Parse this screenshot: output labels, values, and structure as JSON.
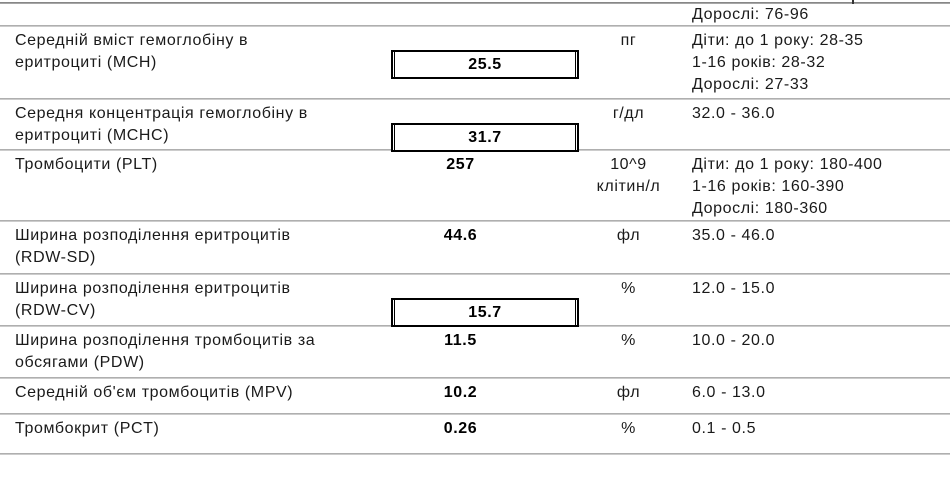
{
  "document_type": "lab-results-table",
  "rows": [
    {
      "name": "",
      "value": "",
      "unit": "",
      "reference": "Дорослі: 76-96"
    },
    {
      "name": "Середній вміст гемоглобіну в\nеритроциті (MCH)",
      "value": "25.5",
      "unit": "пг",
      "reference": "Діти: до 1 року: 28-35\n1-16 років: 28-32\nДорослі: 27-33"
    },
    {
      "name": "Середня концентрація гемоглобіну в\nеритроциті (MCHC)",
      "value": "31.7",
      "unit": "г/дл",
      "reference": "32.0 - 36.0"
    },
    {
      "name": "Тромбоцити (PLT)",
      "value": "257",
      "unit": "10^9\nклітин/л",
      "reference": "Діти: до 1 року: 180-400\n1-16 років: 160-390\nДорослі: 180-360"
    },
    {
      "name": "Ширина розподілення еритроцитів\n(RDW-SD)",
      "value": "44.6",
      "unit": "фл",
      "reference": "35.0 - 46.0"
    },
    {
      "name": "Ширина розподілення еритроцитів\n(RDW-CV)",
      "value": "15.7",
      "unit": "%",
      "reference": "12.0 - 15.0"
    },
    {
      "name": "Ширина розподілення тромбоцитів за\nобсягами (PDW)",
      "value": "11.5",
      "unit": "%",
      "reference": "10.0 - 20.0"
    },
    {
      "name": "Середній об'єм тромбоцитів (MPV)",
      "value": "10.2",
      "unit": "фл",
      "reference": "6.0 - 13.0"
    },
    {
      "name": "Тромбокрит (PCT)",
      "value": "0.26",
      "unit": "%",
      "reference": "0.1 - 0.5"
    }
  ],
  "colors": {
    "value_box_border": "#000000",
    "separator": "#a0a0a0",
    "text": "#1a1a1a"
  }
}
